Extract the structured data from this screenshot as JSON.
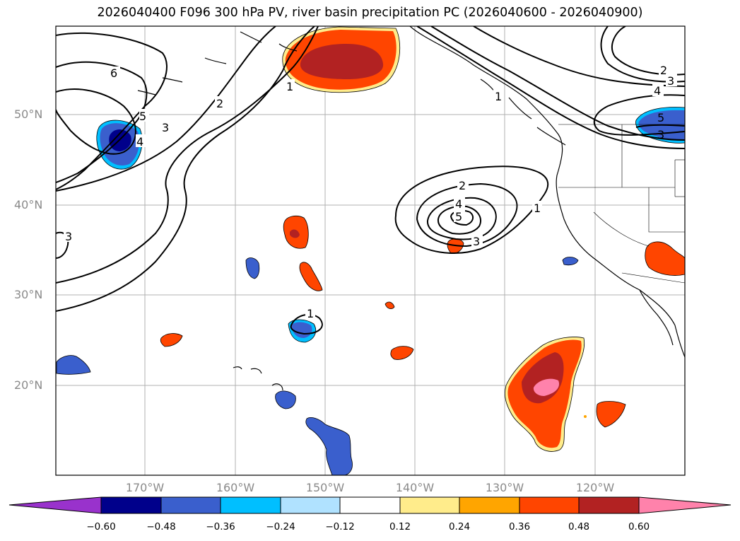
{
  "title": "2026040400 F096 300 hPa PV, river basin precipitation PC (2026040600 - 2026040900)",
  "lat_labels": [
    "50°N",
    "40°N",
    "30°N",
    "20°N"
  ],
  "lon_labels": [
    "170°W",
    "160°W",
    "150°W",
    "140°W",
    "130°W",
    "120°W"
  ],
  "colorbar": {
    "ticks": [
      "−0.60",
      "−0.48",
      "−0.36",
      "−0.24",
      "−0.12",
      "0.12",
      "0.24",
      "0.36",
      "0.48",
      "0.60"
    ],
    "colors": [
      "#9932cc",
      "#00008b",
      "#3a5fcd",
      "#00bfff",
      "#b0e2ff",
      "#ffffff",
      "#ffec8b",
      "#ffa500",
      "#ff4500",
      "#b22222",
      "#ff82ab"
    ]
  },
  "contour_labels": {
    "pv_6": "6",
    "pv_5_west": "5",
    "pv_4_west": "4",
    "pv_3_west": "3",
    "pv_2_west": "2",
    "pv_1_north": "1",
    "pv_3_edge": "3",
    "pv_2_low": "2",
    "pv_4_low": "4",
    "pv_5_low": "5",
    "pv_3_low": "3",
    "pv_1_low": "1",
    "pv_1_gyre": "1",
    "pv_1_coast": "1",
    "pv_2_ne": "2",
    "pv_3_ne": "3",
    "pv_4_ne": "4",
    "pv_5_ne": "5",
    "pv_3_ne_lower": "3"
  }
}
